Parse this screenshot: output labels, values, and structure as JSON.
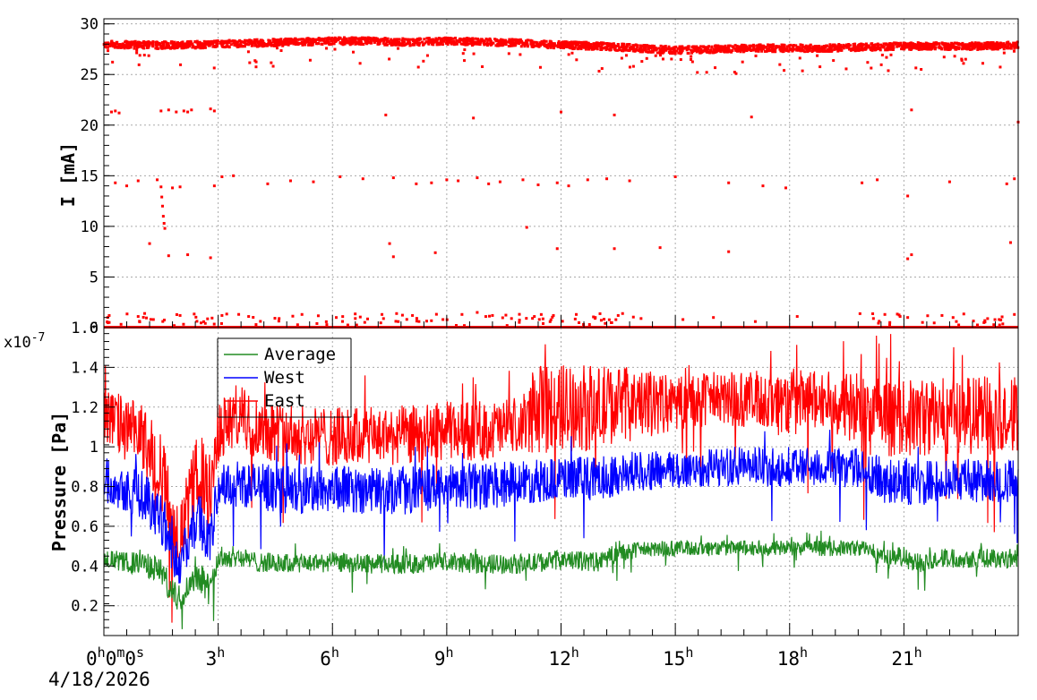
{
  "chart_data": [
    {
      "type": "scatter",
      "ylabel": "I [mA]",
      "ylim": [
        0,
        30.5
      ],
      "y_ticks": [
        0,
        5,
        10,
        15,
        20,
        25,
        30
      ],
      "xlim_hours": [
        0,
        24
      ],
      "grid": true,
      "series": [
        {
          "color": "#ff0000",
          "main_band": {
            "x": [
              0,
              1,
              2,
              3,
              4,
              5,
              6,
              7,
              8,
              9,
              10,
              11,
              12,
              13,
              14,
              15,
              16,
              17,
              18,
              19,
              20,
              21,
              22,
              23,
              24
            ],
            "y": [
              28.0,
              27.9,
              27.9,
              28.0,
              28.1,
              28.2,
              28.3,
              28.3,
              28.2,
              28.3,
              28.2,
              28.1,
              27.9,
              27.8,
              27.6,
              27.4,
              27.5,
              27.6,
              27.6,
              27.6,
              27.7,
              27.8,
              27.8,
              27.8,
              27.9
            ]
          },
          "points": {
            "x": [
              0.2,
              0.3,
              0.4,
              1.5,
              1.7,
              1.9,
              2.1,
              2.2,
              2.3,
              2.8,
              2.9,
              7.4,
              9.7,
              12.0,
              13.4,
              17.0,
              21.2,
              24.0,
              0.3,
              0.6,
              0.9,
              1.4,
              1.8,
              2.0,
              2.9,
              3.1,
              3.4,
              4.3,
              4.9,
              5.5,
              6.2,
              6.8,
              7.6,
              8.2,
              8.6,
              9.0,
              9.3,
              9.8,
              10.1,
              10.4,
              11.0,
              11.4,
              11.9,
              12.2,
              12.7,
              13.2,
              13.8,
              15.0,
              16.4,
              17.3,
              17.9,
              19.9,
              20.3,
              21.1,
              22.2,
              23.7,
              23.9,
              1.5,
              1.52,
              1.54,
              1.56,
              1.58,
              1.6,
              1.2,
              1.7,
              2.2,
              2.8,
              7.5,
              7.6,
              8.7,
              11.1,
              11.9,
              13.4,
              14.6,
              16.4,
              21.1,
              21.2,
              23.8,
              0.1,
              0.9,
              1.3,
              2.0,
              3.1,
              3.8,
              4.6,
              5.2,
              6.1,
              6.6,
              7.3,
              8.1,
              8.9,
              9.4,
              9.8,
              10.2,
              10.7,
              11.3,
              11.8,
              12.4,
              12.9,
              13.5,
              14.1,
              15.2,
              16.0,
              17.1,
              18.2,
              20.2,
              20.5,
              20.9,
              21.1,
              22.0,
              23.5,
              23.9
            ],
            "y": [
              21.3,
              21.4,
              21.2,
              21.4,
              21.5,
              21.3,
              21.4,
              21.3,
              21.5,
              21.6,
              21.4,
              21.0,
              20.7,
              21.3,
              21.0,
              20.8,
              21.5,
              20.3,
              14.3,
              14.0,
              14.5,
              14.6,
              13.8,
              13.9,
              14.0,
              14.9,
              15.0,
              14.2,
              14.5,
              14.4,
              14.9,
              14.7,
              14.8,
              14.2,
              14.3,
              14.6,
              14.5,
              14.8,
              14.2,
              14.4,
              14.6,
              14.1,
              14.3,
              14.0,
              14.6,
              14.7,
              14.5,
              14.9,
              14.3,
              14.0,
              13.8,
              14.3,
              14.6,
              13.0,
              14.4,
              14.2,
              14.7,
              13.9,
              12.9,
              12.0,
              11.0,
              10.3,
              9.8,
              8.3,
              7.1,
              7.2,
              6.9,
              8.3,
              7.0,
              7.4,
              9.9,
              7.8,
              7.8,
              7.9,
              7.5,
              6.8,
              7.2,
              8.4,
              1.0,
              1.1,
              0.8,
              1.2,
              1.2,
              1.1,
              0.9,
              1.3,
              1.0,
              0.9,
              1.3,
              1.2,
              0.8,
              1.3,
              1.5,
              1.2,
              0.9,
              1.1,
              1.2,
              1.3,
              1.0,
              1.2,
              0.9,
              0.8,
              1.0,
              0.6,
              1.1,
              0.9,
              1.3,
              1.1,
              1.0,
              1.2,
              0.8,
              1.3
            ]
          }
        }
      ]
    },
    {
      "type": "line",
      "ylabel": "Pressure [Pa]",
      "y_exponent_label": "x10",
      "y_exponent_power": "-7",
      "ylim": [
        0.05,
        1.6
      ],
      "y_ticks": [
        0.2,
        0.4,
        0.6,
        0.8,
        1.0,
        1.2,
        1.4,
        1.6
      ],
      "y_tick_labels": [
        "0.2",
        "0.4",
        "0.6",
        "0.8",
        "1",
        "1.2",
        "1.4",
        "1.6"
      ],
      "xlim_hours": [
        0,
        24
      ],
      "grid": true,
      "legend": "top-left",
      "x_ticks": [
        0,
        3,
        6,
        9,
        12,
        15,
        18,
        21
      ],
      "x_tick_labels": [
        {
          "parts": [
            [
              "0",
              "h"
            ],
            [
              "0",
              "m"
            ],
            [
              "0",
              "s"
            ]
          ]
        },
        {
          "parts": [
            [
              "3",
              "h"
            ]
          ]
        },
        {
          "parts": [
            [
              "6",
              "h"
            ]
          ]
        },
        {
          "parts": [
            [
              "9",
              "h"
            ]
          ]
        },
        {
          "parts": [
            [
              "12",
              "h"
            ]
          ]
        },
        {
          "parts": [
            [
              "15",
              "h"
            ]
          ]
        },
        {
          "parts": [
            [
              "18",
              "h"
            ]
          ]
        },
        {
          "parts": [
            [
              "21",
              "h"
            ]
          ]
        }
      ],
      "x_date_label": "4/18/2026",
      "series": [
        {
          "name": "Average",
          "color": "#228b22",
          "x": [
            0,
            0.5,
            1.0,
            1.5,
            1.8,
            2.0,
            2.2,
            2.5,
            2.8,
            3.0,
            3.5,
            4.0,
            5.0,
            6.0,
            7.0,
            8.0,
            9.0,
            10.0,
            11.0,
            12.0,
            13.0,
            13.4,
            14.0,
            15.0,
            16.0,
            17.0,
            18.0,
            19.0,
            20.0,
            20.5,
            21.0,
            21.2,
            22.0,
            23.0,
            24.0
          ],
          "center": [
            0.44,
            0.42,
            0.41,
            0.38,
            0.25,
            0.24,
            0.3,
            0.36,
            0.27,
            0.44,
            0.45,
            0.42,
            0.41,
            0.42,
            0.41,
            0.41,
            0.42,
            0.41,
            0.41,
            0.43,
            0.42,
            0.46,
            0.48,
            0.49,
            0.49,
            0.49,
            0.49,
            0.49,
            0.49,
            0.44,
            0.45,
            0.41,
            0.44,
            0.44,
            0.44
          ],
          "spread": [
            0.05,
            0.05,
            0.06,
            0.07,
            0.08,
            0.07,
            0.06,
            0.08,
            0.08,
            0.06,
            0.05,
            0.05,
            0.05,
            0.05,
            0.05,
            0.05,
            0.05,
            0.05,
            0.05,
            0.05,
            0.05,
            0.05,
            0.04,
            0.04,
            0.04,
            0.04,
            0.04,
            0.04,
            0.04,
            0.05,
            0.05,
            0.05,
            0.05,
            0.05,
            0.05
          ]
        },
        {
          "name": "West",
          "color": "#0000ff",
          "x": [
            0,
            0.5,
            1.0,
            1.5,
            1.8,
            2.0,
            2.2,
            2.5,
            2.8,
            3.0,
            3.5,
            4.0,
            5.0,
            6.0,
            7.0,
            8.0,
            9.0,
            10.0,
            11.0,
            12.0,
            13.0,
            13.4,
            14.0,
            15.0,
            16.0,
            17.0,
            18.0,
            19.0,
            20.0,
            20.5,
            21.0,
            21.2,
            22.0,
            23.0,
            24.0
          ],
          "center": [
            0.84,
            0.8,
            0.76,
            0.66,
            0.48,
            0.4,
            0.52,
            0.66,
            0.5,
            0.8,
            0.82,
            0.8,
            0.78,
            0.79,
            0.78,
            0.78,
            0.8,
            0.8,
            0.82,
            0.84,
            0.84,
            0.86,
            0.88,
            0.88,
            0.9,
            0.9,
            0.9,
            0.9,
            0.89,
            0.82,
            0.84,
            0.8,
            0.84,
            0.83,
            0.83
          ],
          "spread": [
            0.12,
            0.12,
            0.13,
            0.14,
            0.12,
            0.1,
            0.12,
            0.14,
            0.14,
            0.12,
            0.12,
            0.12,
            0.12,
            0.12,
            0.12,
            0.12,
            0.12,
            0.12,
            0.11,
            0.11,
            0.11,
            0.11,
            0.1,
            0.1,
            0.1,
            0.1,
            0.1,
            0.1,
            0.1,
            0.12,
            0.12,
            0.12,
            0.11,
            0.11,
            0.11
          ]
        },
        {
          "name": "East",
          "color": "#ff0000",
          "x": [
            0,
            0.5,
            1.0,
            1.5,
            1.8,
            2.0,
            2.2,
            2.5,
            2.8,
            3.0,
            3.5,
            4.0,
            5.0,
            6.0,
            7.0,
            8.0,
            9.0,
            10.0,
            11.0,
            11.2,
            12.0,
            13.0,
            13.4,
            14.0,
            15.0,
            16.0,
            17.0,
            18.0,
            19.0,
            20.0,
            20.5,
            21.0,
            21.2,
            22.0,
            23.0,
            24.0
          ],
          "center": [
            1.15,
            1.1,
            1.05,
            0.9,
            0.62,
            0.55,
            0.7,
            0.9,
            0.7,
            1.08,
            1.15,
            1.1,
            1.06,
            1.05,
            1.05,
            1.06,
            1.08,
            1.08,
            1.1,
            1.18,
            1.2,
            1.19,
            1.22,
            1.21,
            1.22,
            1.24,
            1.24,
            1.22,
            1.24,
            1.16,
            1.14,
            1.15,
            1.14,
            1.16,
            1.16,
            1.16
          ],
          "spread": [
            0.16,
            0.16,
            0.17,
            0.2,
            0.18,
            0.16,
            0.18,
            0.2,
            0.2,
            0.16,
            0.17,
            0.16,
            0.15,
            0.15,
            0.15,
            0.15,
            0.15,
            0.15,
            0.15,
            0.22,
            0.22,
            0.22,
            0.2,
            0.18,
            0.14,
            0.14,
            0.14,
            0.18,
            0.14,
            0.22,
            0.2,
            0.18,
            0.2,
            0.2,
            0.2,
            0.2
          ]
        }
      ]
    }
  ]
}
